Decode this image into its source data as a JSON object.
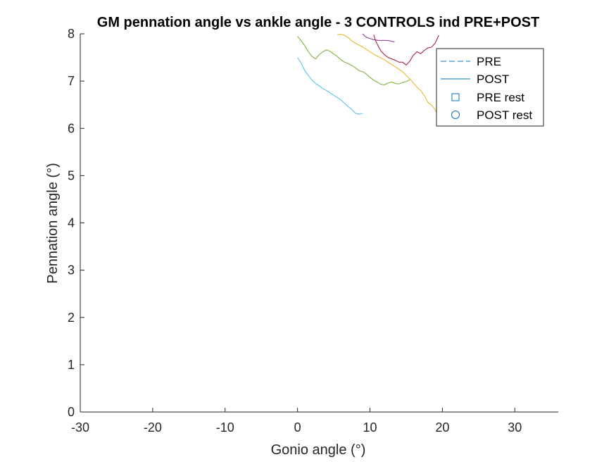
{
  "chart_data": {
    "type": "line",
    "title": "GM pennation angle vs ankle angle - 3 CONTROLS ind PRE+POST",
    "xlabel": "Gonio angle (°)",
    "ylabel": "Pennation angle (°)",
    "xlim": [
      -30,
      36
    ],
    "ylim": [
      0,
      8
    ],
    "xticks": [
      -30,
      -20,
      -10,
      0,
      10,
      20,
      30
    ],
    "yticks": [
      0,
      1,
      2,
      3,
      4,
      5,
      6,
      7,
      8
    ],
    "grid": false,
    "legend_placement": "top-right",
    "legend": [
      {
        "label": "PRE",
        "style": "dashed-line",
        "color": "#0072BD"
      },
      {
        "label": "POST",
        "style": "solid-line",
        "color": "#0072BD"
      },
      {
        "label": "PRE rest",
        "style": "square-marker",
        "color": "#0072BD"
      },
      {
        "label": "POST rest",
        "style": "circle-marker",
        "color": "#0072BD"
      }
    ],
    "series": [
      {
        "color": "#4DBEEE",
        "x": [
          0.0,
          0.5,
          1.0,
          1.5,
          2.0,
          2.5,
          3.0,
          3.5,
          4.0,
          4.5,
          5.0,
          5.5,
          6.0,
          6.5,
          7.0,
          7.5,
          8.0,
          8.5,
          9.0
        ],
        "y": [
          7.5,
          7.38,
          7.22,
          7.12,
          7.02,
          6.95,
          6.9,
          6.84,
          6.8,
          6.75,
          6.7,
          6.65,
          6.6,
          6.53,
          6.46,
          6.4,
          6.32,
          6.3,
          6.32
        ]
      },
      {
        "color": "#77AC30",
        "x": [
          0.0,
          0.5,
          1.0,
          1.5,
          2.0,
          2.5,
          3.0,
          3.5,
          4.0,
          4.5,
          5.0,
          5.5,
          6.0,
          6.5,
          7.0,
          7.5,
          8.0,
          8.5,
          9.0,
          9.5,
          10.0,
          10.5,
          11.0,
          11.5,
          12.0,
          12.5,
          13.0,
          13.5,
          14.0,
          14.5,
          15.0,
          15.5
        ],
        "y": [
          7.95,
          7.85,
          7.75,
          7.62,
          7.52,
          7.47,
          7.56,
          7.62,
          7.66,
          7.63,
          7.57,
          7.52,
          7.45,
          7.4,
          7.37,
          7.33,
          7.28,
          7.22,
          7.2,
          7.15,
          7.08,
          7.02,
          6.98,
          6.93,
          6.92,
          6.96,
          6.98,
          6.95,
          6.94,
          6.97,
          6.99,
          7.03
        ]
      },
      {
        "color": "#EDB120",
        "x": [
          5.5,
          6.0,
          6.5,
          7.0,
          7.5,
          8.0,
          8.5,
          9.0,
          9.5,
          10.0,
          10.5,
          11.0,
          11.5,
          12.0,
          12.5,
          13.0,
          13.5,
          14.0,
          14.5,
          15.0,
          15.5,
          16.0,
          16.5,
          17.0,
          17.5,
          18.0,
          18.5,
          19.0,
          19.5
        ],
        "y": [
          7.98,
          7.99,
          7.97,
          7.92,
          7.85,
          7.8,
          7.76,
          7.72,
          7.67,
          7.62,
          7.57,
          7.53,
          7.49,
          7.45,
          7.4,
          7.35,
          7.3,
          7.25,
          7.2,
          7.12,
          7.05,
          6.96,
          6.87,
          6.8,
          6.7,
          6.55,
          6.49,
          6.4,
          6.22
        ]
      },
      {
        "color": "#7E2F8E",
        "x": [
          9.0,
          9.3,
          9.6,
          10.0,
          10.4,
          10.8,
          11.2,
          11.6,
          12.0,
          12.4,
          12.8,
          13.0,
          13.4
        ],
        "y": [
          8.0,
          7.95,
          7.92,
          7.9,
          7.88,
          7.87,
          7.86,
          7.86,
          7.86,
          7.86,
          7.85,
          7.84,
          7.83
        ]
      },
      {
        "color": "#A2142F",
        "x": [
          10.5,
          10.8,
          11.2,
          11.6,
          12.0,
          12.5,
          13.0,
          13.5,
          14.0,
          14.5,
          15.0,
          15.5,
          16.0,
          16.5,
          17.0,
          17.5,
          18.0,
          18.5,
          19.0,
          19.5
        ],
        "y": [
          7.98,
          7.85,
          7.72,
          7.62,
          7.56,
          7.5,
          7.47,
          7.44,
          7.4,
          7.4,
          7.34,
          7.42,
          7.55,
          7.62,
          7.58,
          7.65,
          7.7,
          7.72,
          7.8,
          7.97
        ]
      }
    ]
  }
}
